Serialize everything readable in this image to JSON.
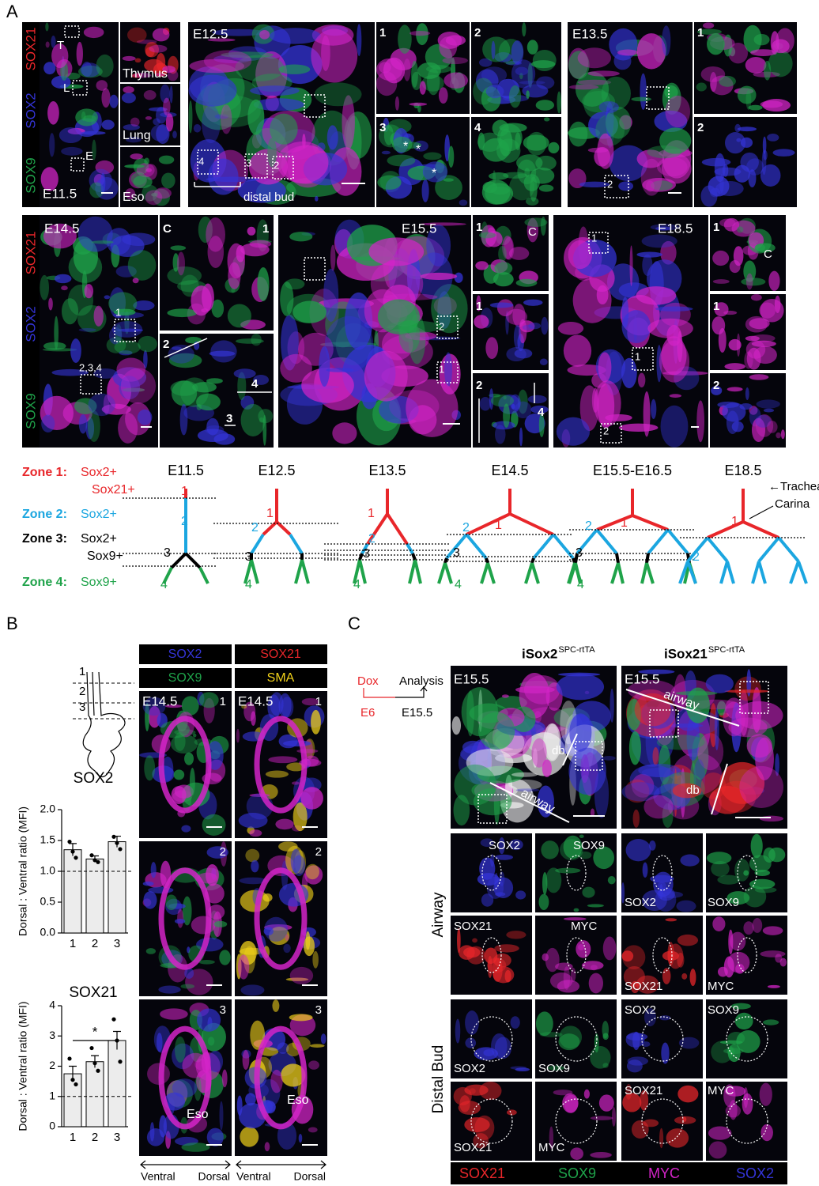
{
  "panel_a": {
    "label": "A",
    "row_labels": [
      "SOX21",
      "SOX2",
      "SOX9"
    ],
    "e115": {
      "stage": "E11.5",
      "boxes": [
        "T",
        "L",
        "E"
      ],
      "insets": [
        "Thymus",
        "Lung",
        "Eso"
      ]
    },
    "e125": {
      "stage": "E12.5",
      "boxes": [
        "4",
        "3",
        "2"
      ],
      "bracket": "distal bud",
      "insets": [
        "1",
        "2",
        "3",
        "4"
      ],
      "asterisks": [
        "*",
        "*",
        "*"
      ]
    },
    "e135": {
      "stage": "E13.5",
      "boxes": [
        "2"
      ],
      "insets": [
        "1",
        "2"
      ]
    },
    "e145": {
      "stage": "E14.5",
      "boxes": [
        "1",
        "2,3,4"
      ],
      "insets": [
        "C",
        "1",
        "2",
        "3",
        "4"
      ]
    },
    "e155": {
      "stage": "E15.5",
      "boxes": [
        "2",
        "1"
      ],
      "insets": [
        "1",
        "C",
        "1",
        "2",
        "4"
      ]
    },
    "e185": {
      "stage": "E18.5",
      "boxes": [
        "1",
        "1",
        "2"
      ],
      "insets": [
        "1",
        "C",
        "1",
        "2"
      ]
    },
    "zones": [
      {
        "name": "Zone 1:",
        "markers": [
          "Sox2+",
          "Sox21+"
        ]
      },
      {
        "name": "Zone 2:",
        "markers": [
          "Sox2+"
        ]
      },
      {
        "name": "Zone 3:",
        "markers": [
          "Sox2+",
          "Sox9+"
        ]
      },
      {
        "name": "Zone 4:",
        "markers": [
          "Sox9+"
        ]
      }
    ],
    "schemes": [
      {
        "stage": "E11.5",
        "zones": [
          "1",
          "2",
          "3",
          "4"
        ]
      },
      {
        "stage": "E12.5",
        "zones": [
          "1",
          "2",
          "3",
          "4"
        ]
      },
      {
        "stage": "E13.5",
        "zones": [
          "1",
          "2",
          "3",
          "4"
        ]
      },
      {
        "stage": "E14.5",
        "zones": [
          "1",
          "2",
          "3",
          "4"
        ]
      },
      {
        "stage": "E15.5-E16.5",
        "zones": [
          "1",
          "2",
          "3",
          "4"
        ]
      },
      {
        "stage": "E18.5",
        "zones": [
          "1",
          "2"
        ],
        "annotations": [
          "←Trachea",
          "Carina"
        ]
      }
    ]
  },
  "panel_b": {
    "label": "B",
    "schematic_levels": [
      "1",
      "2",
      "3"
    ],
    "channels": [
      "SOX2",
      "SOX21",
      "SOX9",
      "SMA"
    ],
    "images": [
      {
        "stage": "E14.5",
        "rows": [
          "1",
          "2",
          "3"
        ],
        "organ": "Eso"
      },
      {
        "stage": "E14.5",
        "rows": [
          "1",
          "2",
          "3"
        ],
        "organ": "Eso"
      }
    ],
    "axes": [
      [
        "Ventral",
        "Dorsal"
      ],
      [
        "Ventral",
        "Dorsal"
      ]
    ]
  },
  "chart_data": [
    {
      "type": "bar",
      "title": "SOX2",
      "y_label": "Dorsal : Ventral ratio (MFI)",
      "categories": [
        "1",
        "2",
        "3"
      ],
      "values": [
        1.35,
        1.2,
        1.48
      ],
      "errors": [
        0.1,
        0.05,
        0.09
      ],
      "points": [
        [
          1.48,
          1.32,
          1.22
        ],
        [
          1.26,
          1.18,
          1.15
        ],
        [
          1.56,
          1.46,
          1.36
        ]
      ],
      "color": "#ececec",
      "reference_line": 1,
      "ylim": [
        0,
        2
      ],
      "yticks": [
        {
          "value": 0,
          "label": "0.0"
        },
        {
          "value": 0.5,
          "label": "0.5"
        },
        {
          "value": 1,
          "label": "1.0"
        },
        {
          "value": 1.5,
          "label": "1.5"
        },
        {
          "value": 2,
          "label": "2.0"
        }
      ]
    },
    {
      "type": "bar",
      "title": "SOX21",
      "y_label": "Dorsal : Ventral ratio (MFI)",
      "categories": [
        "1",
        "2",
        "3"
      ],
      "values": [
        1.75,
        2.15,
        2.85
      ],
      "errors": [
        0.25,
        0.2,
        0.3
      ],
      "points": [
        [
          2.25,
          1.55,
          1.4
        ],
        [
          2.6,
          2.1,
          1.85
        ],
        [
          3.55,
          2.85,
          2.15
        ]
      ],
      "color": "#ececec",
      "reference_line": 1,
      "significance": "*",
      "ylim": [
        0,
        4
      ],
      "yticks": [
        0,
        1,
        2,
        3,
        4
      ]
    }
  ],
  "panel_c": {
    "label": "C",
    "genotypes": [
      {
        "name": "iSox2",
        "sup": "SPC-rtTA"
      },
      {
        "name": "iSox21",
        "sup": "SPC-rtTA"
      }
    ],
    "timeline": {
      "start": "Dox",
      "end": "Analysis",
      "start_day": "E6",
      "end_day": "E15.5"
    },
    "images": [
      {
        "stage": "E15.5",
        "regions": [
          "db",
          "airway"
        ]
      },
      {
        "stage": "E15.5",
        "regions": [
          "airway",
          "db"
        ]
      }
    ],
    "row_labels": [
      "Airway",
      "Distal Bud"
    ],
    "tiles": [
      [
        "SOX2",
        "SOX9",
        "SOX21",
        "MYC"
      ],
      [
        "SOX2",
        "SOX9",
        "SOX21",
        "MYC"
      ],
      [
        "SOX2",
        "SOX9",
        "SOX21",
        "MYC"
      ],
      [
        "SOX2",
        "SOX9",
        "SOX21",
        "MYC"
      ]
    ],
    "legend": [
      "SOX21",
      "SOX9",
      "MYC",
      "SOX2"
    ]
  }
}
